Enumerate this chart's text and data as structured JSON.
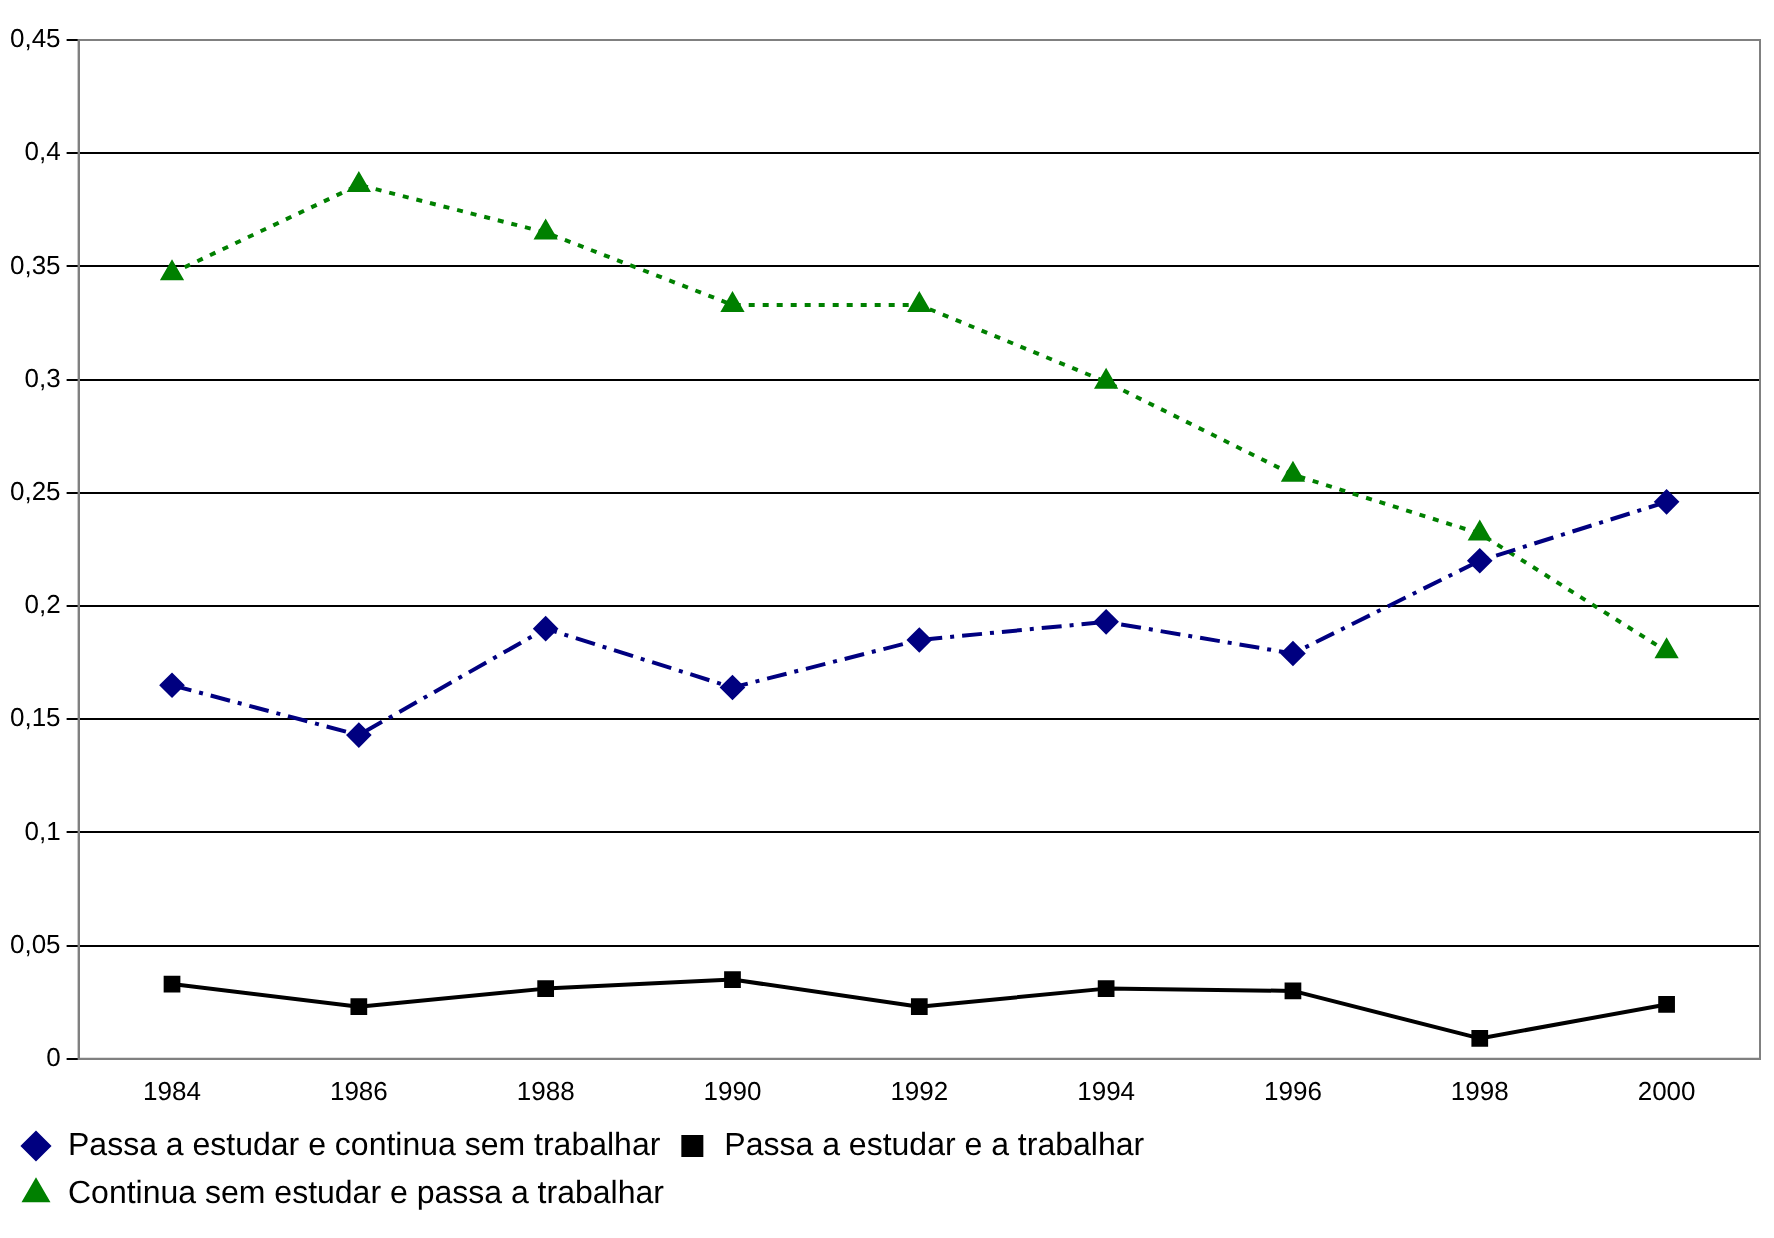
{
  "chart_data": {
    "type": "line",
    "categories": [
      "1984",
      "1986",
      "1988",
      "1990",
      "1992",
      "1994",
      "1996",
      "1998",
      "2000"
    ],
    "series": [
      {
        "name": "Passa a estudar e continua sem trabalhar",
        "color": "#000080",
        "marker": "diamond",
        "line_style": "dashed",
        "values": [
          0.165,
          0.143,
          0.19,
          0.164,
          0.185,
          0.193,
          0.179,
          0.22,
          0.246
        ]
      },
      {
        "name": "Passa a estudar e a trabalhar",
        "color": "#000000",
        "marker": "square",
        "line_style": "solid",
        "values": [
          0.033,
          0.023,
          0.031,
          0.035,
          0.023,
          0.031,
          0.03,
          0.009,
          0.024
        ]
      },
      {
        "name": "Continua sem estudar e passa a trabalhar",
        "color": "#008000",
        "marker": "triangle",
        "line_style": "dotted",
        "values": [
          0.347,
          0.386,
          0.365,
          0.333,
          0.333,
          0.299,
          0.258,
          0.232,
          0.18
        ]
      }
    ],
    "ylim": [
      0,
      0.45
    ],
    "yticks": [
      0,
      {
        "value": 0.05,
        "label": "0,05"
      },
      {
        "value": 0.1,
        "label": "0,1"
      },
      {
        "value": 0.15,
        "label": "0,15"
      },
      {
        "value": 0.2,
        "label": "0,2"
      },
      {
        "value": 0.25,
        "label": "0,25"
      },
      {
        "value": 0.3,
        "label": "0,3"
      },
      {
        "value": 0.35,
        "label": "0,35"
      },
      {
        "value": 0.4,
        "label": "0,4"
      },
      {
        "value": 0.45,
        "label": "0,45"
      }
    ],
    "grid": "y",
    "legend": "bottom"
  }
}
